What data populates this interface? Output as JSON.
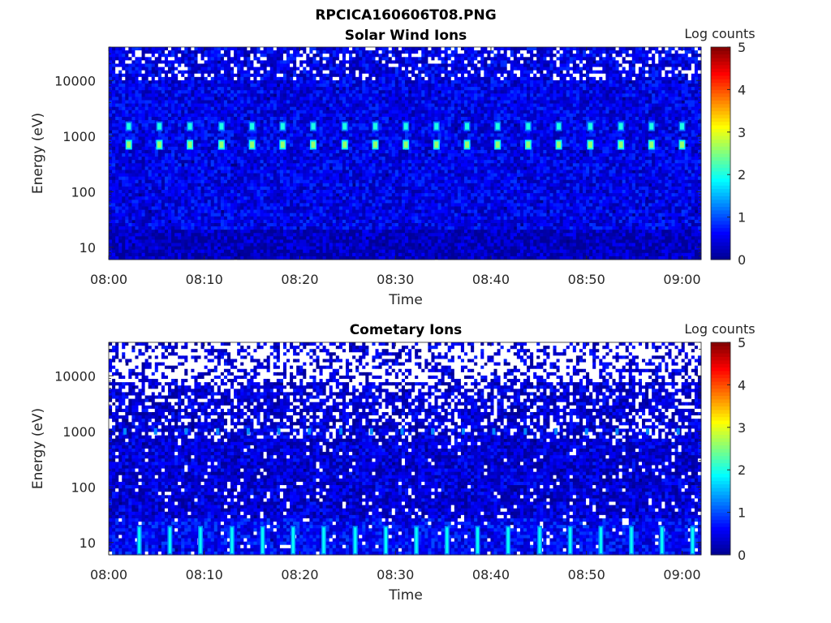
{
  "figure_title": "RPCICA160606T08.PNG",
  "colors": {
    "colormap": [
      "#00008F",
      "#0000FF",
      "#0080FF",
      "#00FFFF",
      "#80FF80",
      "#FFFF00",
      "#FF8000",
      "#FF0000",
      "#800000"
    ],
    "background": "#000080",
    "text": "#262626"
  },
  "chart_data": [
    {
      "type": "heatmap",
      "title": "Solar Wind Ions",
      "xlabel": "Time",
      "ylabel": "Energy (eV)",
      "yscale": "log",
      "ylim": [
        6,
        40000
      ],
      "xlim_minutes": [
        0,
        62
      ],
      "xticks": [
        {
          "value": 0,
          "label": "08:00"
        },
        {
          "value": 10,
          "label": "08:10"
        },
        {
          "value": 20,
          "label": "08:20"
        },
        {
          "value": 30,
          "label": "08:30"
        },
        {
          "value": 40,
          "label": "08:40"
        },
        {
          "value": 50,
          "label": "08:50"
        },
        {
          "value": 60,
          "label": "09:00"
        }
      ],
      "yticks": [
        {
          "value": 10,
          "label": "10"
        },
        {
          "value": 100,
          "label": "100"
        },
        {
          "value": 1000,
          "label": "1000"
        },
        {
          "value": 10000,
          "label": "10000"
        }
      ],
      "colorbar": {
        "label": "Log counts",
        "range": [
          0,
          5
        ],
        "ticks": [
          "0",
          "1",
          "2",
          "3",
          "4",
          "5"
        ]
      },
      "background_log_counts": 0.5,
      "solar_wind_peak_energies_eV": [
        700,
        1500
      ],
      "peak_times_minutes": [
        2.1,
        5.3,
        8.5,
        11.8,
        15.0,
        18.2,
        21.4,
        24.7,
        27.9,
        31.1,
        34.3,
        37.5,
        40.7,
        43.9,
        47.1,
        50.4,
        53.6,
        56.8,
        60.0
      ],
      "peak_log_counts": 2.6
    },
    {
      "type": "heatmap",
      "title": "Cometary Ions",
      "xlabel": "Time",
      "ylabel": "Energy (eV)",
      "yscale": "log",
      "ylim": [
        6,
        40000
      ],
      "xlim_minutes": [
        0,
        62
      ],
      "xticks": [
        {
          "value": 0,
          "label": "08:00"
        },
        {
          "value": 10,
          "label": "08:10"
        },
        {
          "value": 20,
          "label": "08:20"
        },
        {
          "value": 30,
          "label": "08:30"
        },
        {
          "value": 40,
          "label": "08:40"
        },
        {
          "value": 50,
          "label": "08:50"
        },
        {
          "value": 60,
          "label": "09:00"
        }
      ],
      "yticks": [
        {
          "value": 10,
          "label": "10"
        },
        {
          "value": 100,
          "label": "100"
        },
        {
          "value": 1000,
          "label": "1000"
        },
        {
          "value": 10000,
          "label": "10000"
        }
      ],
      "colorbar": {
        "label": "Log counts",
        "range": [
          0,
          5
        ],
        "ticks": [
          "0",
          "1",
          "2",
          "3",
          "4",
          "5"
        ]
      },
      "background_log_counts": 0.4,
      "low_energy_band_eV": [
        6,
        20
      ],
      "low_energy_peak_times_minutes": [
        3.2,
        6.4,
        9.6,
        12.9,
        16.1,
        19.3,
        22.5,
        25.8,
        29.0,
        32.2,
        35.4,
        38.6,
        41.8,
        45.1,
        48.3,
        51.5,
        54.7,
        57.9,
        61.1
      ],
      "low_energy_peak_log_counts": 1.9
    }
  ]
}
